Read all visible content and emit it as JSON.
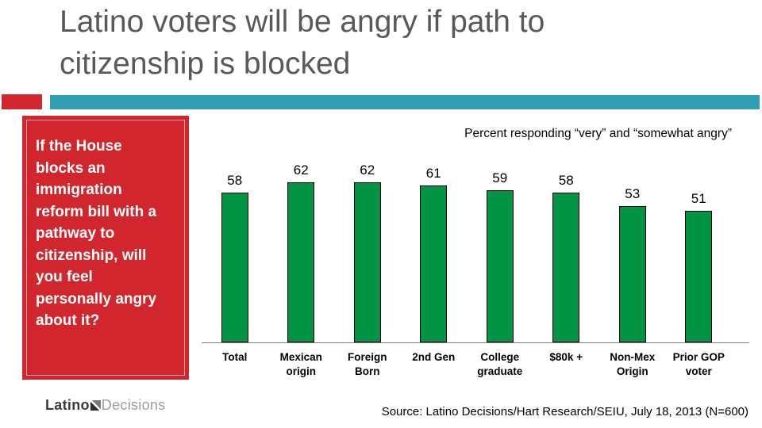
{
  "slide": {
    "title": "Latino voters will be angry if path to\ncitizenship is blocked",
    "question": "If the House\nblocks an\nimmigration\nreform bill with a\npathway to\ncitizenship, will\nyou feel\npersonally angry\nabout it?",
    "colors": {
      "accent_red": "#D2262F",
      "accent_teal": "#2E9FB5",
      "bar_green": "#009444",
      "title_gray": "#595959",
      "axis_gray": "#7f7f7f"
    }
  },
  "footer": {
    "logo_primary": "Latino",
    "logo_secondary": "Decisions",
    "source": "Source: Latino Decisions/Hart Research/SEIU, July 18, 2013 (N=600)"
  },
  "chart_data": {
    "type": "bar",
    "title": "Percent responding “very” and “somewhat angry”",
    "categories": [
      "Total",
      "Mexican origin",
      "Foreign Born",
      "2nd Gen",
      "College graduate",
      "$80k +",
      "Non-Mex Origin",
      "Prior GOP voter"
    ],
    "category_lines": [
      "Total",
      "Mexican\norigin",
      "Foreign\nBorn",
      "2nd Gen",
      "College\ngraduate",
      "$80k +",
      "Non-Mex\nOrigin",
      "Prior GOP\nvoter"
    ],
    "values": [
      58,
      62,
      62,
      61,
      59,
      58,
      53,
      51
    ],
    "bar_color": "#009444",
    "bar_border_color": "#000000",
    "data_labels": true,
    "y_axis_visible": false,
    "grid": false,
    "legend": "none",
    "ylim": [
      0,
      70
    ]
  }
}
